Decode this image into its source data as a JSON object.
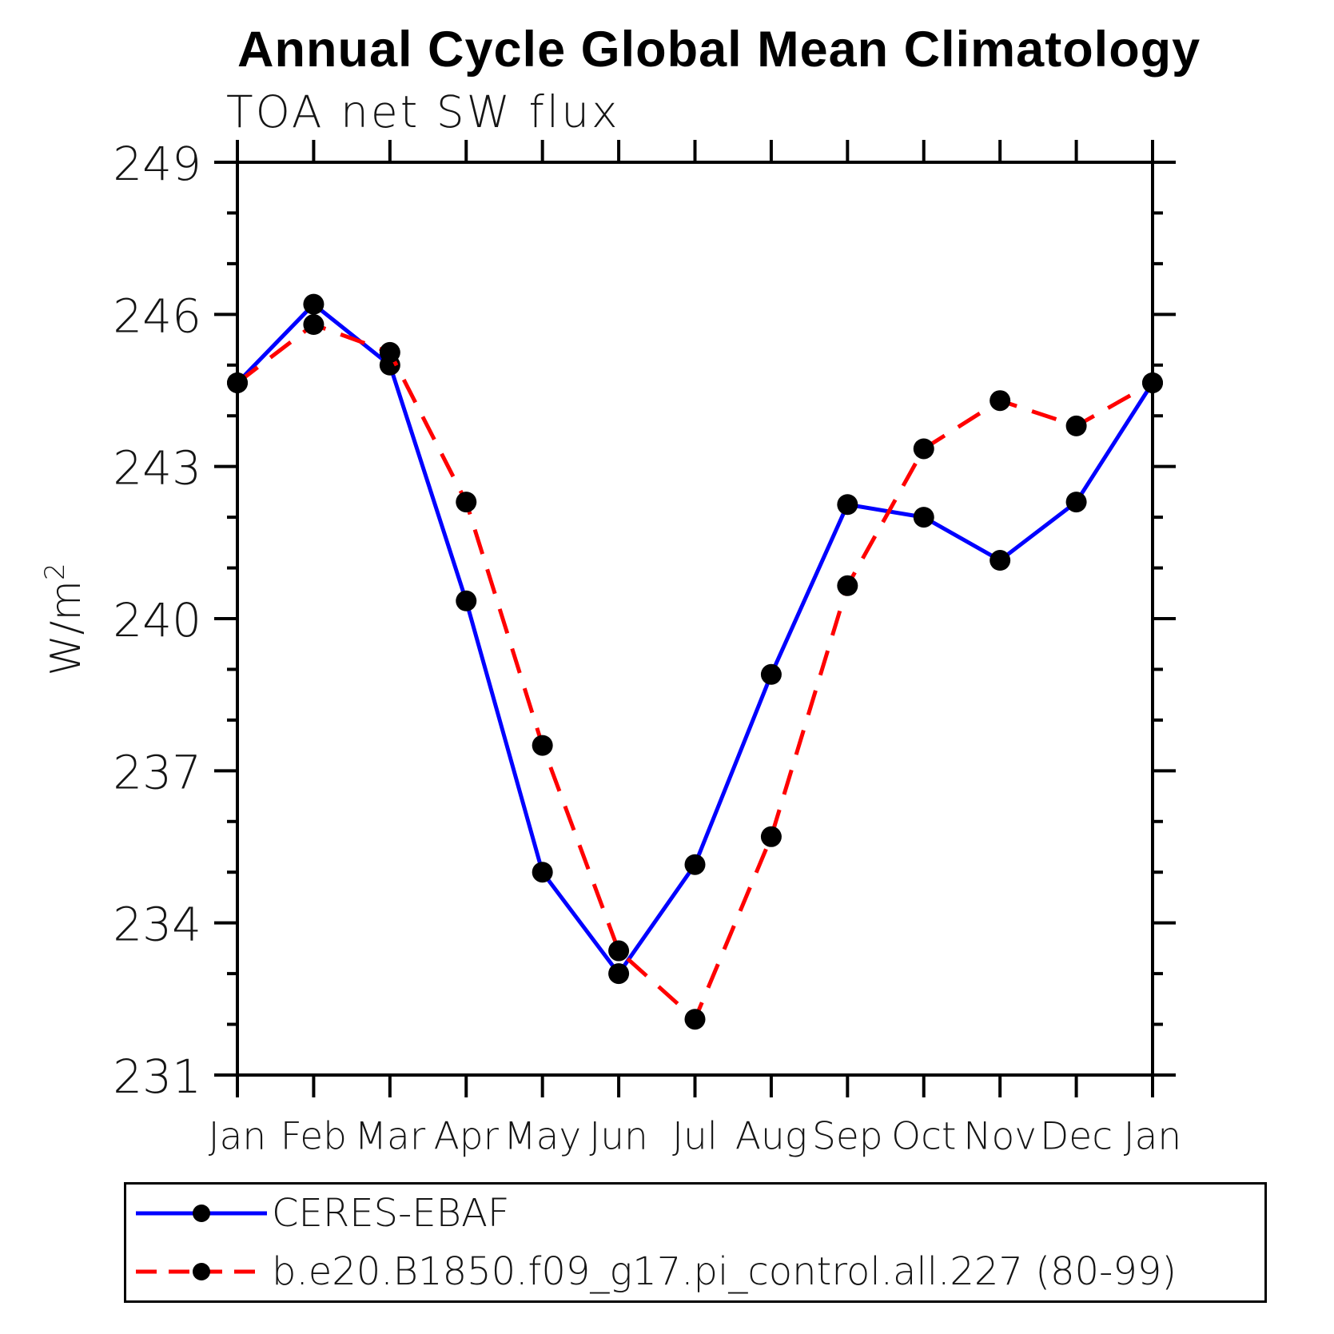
{
  "title": "Annual Cycle Global Mean Climatology",
  "subtitle": "TOA net SW flux",
  "ylabel": {
    "base": "W/m",
    "exp": "2"
  },
  "chart_data": {
    "type": "line",
    "x_categories": [
      "Jan",
      "Feb",
      "Mar",
      "Apr",
      "May",
      "Jun",
      "Jul",
      "Aug",
      "Sep",
      "Oct",
      "Nov",
      "Dec",
      "Jan"
    ],
    "ylim": [
      231,
      249
    ],
    "y_major_ticks": [
      249,
      246,
      243,
      240,
      237,
      234,
      231
    ],
    "y_minor_step": 1,
    "grid": "off",
    "legend_position": "bottom",
    "axis_color": "#000000",
    "marker_color": "#000000",
    "series": [
      {
        "name": "CERES-EBAF",
        "color": "#0000ff",
        "style": "solid",
        "values": [
          244.65,
          246.2,
          245.0,
          240.35,
          235.0,
          233.0,
          235.15,
          238.9,
          242.25,
          242.0,
          241.15,
          242.3,
          244.65
        ]
      },
      {
        "name": "b.e20.B1850.f09_g17.pi_control.all.227 (80-99)",
        "color": "#ff0000",
        "style": "dashed",
        "values": [
          244.65,
          245.8,
          245.25,
          242.3,
          237.5,
          233.45,
          232.1,
          235.7,
          240.65,
          243.35,
          244.3,
          243.8,
          244.65
        ]
      }
    ]
  }
}
